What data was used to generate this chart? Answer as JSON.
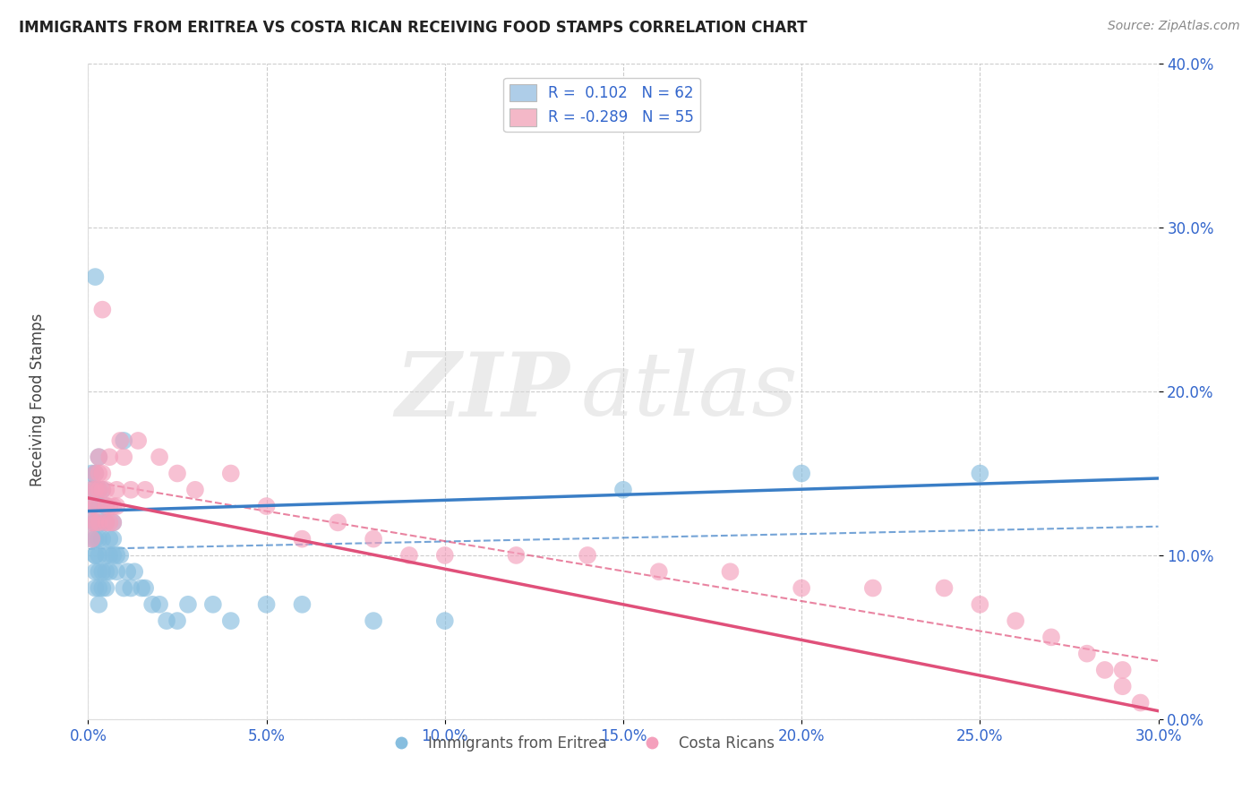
{
  "title": "IMMIGRANTS FROM ERITREA VS COSTA RICAN RECEIVING FOOD STAMPS CORRELATION CHART",
  "source": "Source: ZipAtlas.com",
  "ylabel": "Receiving Food Stamps",
  "xlim": [
    0.0,
    0.3
  ],
  "ylim": [
    0.0,
    0.4
  ],
  "xticks": [
    0.0,
    0.05,
    0.1,
    0.15,
    0.2,
    0.25,
    0.3
  ],
  "yticks": [
    0.0,
    0.1,
    0.2,
    0.3,
    0.4
  ],
  "xtick_labels": [
    "0.0%",
    "5.0%",
    "10.0%",
    "15.0%",
    "20.0%",
    "25.0%",
    "30.0%"
  ],
  "ytick_labels": [
    "0.0%",
    "10.0%",
    "20.0%",
    "30.0%",
    "40.0%"
  ],
  "watermark_zip": "ZIP",
  "watermark_atlas": "atlas",
  "blue_scatter_color": "#87bedf",
  "pink_scatter_color": "#f4a0bc",
  "blue_line_color": "#3a7ec6",
  "pink_line_color": "#e0507a",
  "legend_text_color": "#3366cc",
  "legend_patch_blue": "#aecde8",
  "legend_patch_pink": "#f4b8c8",
  "blue_r": 0.102,
  "blue_n": 62,
  "pink_r": -0.289,
  "pink_n": 55,
  "blue_scatter_x": [
    0.001,
    0.001,
    0.001,
    0.001,
    0.001,
    0.002,
    0.002,
    0.002,
    0.002,
    0.002,
    0.002,
    0.002,
    0.002,
    0.002,
    0.003,
    0.003,
    0.003,
    0.003,
    0.003,
    0.003,
    0.003,
    0.003,
    0.004,
    0.004,
    0.004,
    0.004,
    0.004,
    0.005,
    0.005,
    0.005,
    0.005,
    0.005,
    0.006,
    0.006,
    0.006,
    0.007,
    0.007,
    0.007,
    0.008,
    0.008,
    0.009,
    0.01,
    0.01,
    0.011,
    0.012,
    0.013,
    0.015,
    0.016,
    0.018,
    0.02,
    0.022,
    0.025,
    0.028,
    0.035,
    0.04,
    0.05,
    0.06,
    0.08,
    0.1,
    0.15,
    0.2,
    0.25
  ],
  "blue_scatter_y": [
    0.14,
    0.15,
    0.11,
    0.12,
    0.13,
    0.27,
    0.1,
    0.12,
    0.14,
    0.15,
    0.11,
    0.09,
    0.08,
    0.1,
    0.13,
    0.14,
    0.16,
    0.1,
    0.11,
    0.09,
    0.08,
    0.07,
    0.12,
    0.14,
    0.11,
    0.09,
    0.08,
    0.13,
    0.12,
    0.1,
    0.09,
    0.08,
    0.11,
    0.1,
    0.09,
    0.12,
    0.11,
    0.1,
    0.1,
    0.09,
    0.1,
    0.17,
    0.08,
    0.09,
    0.08,
    0.09,
    0.08,
    0.08,
    0.07,
    0.07,
    0.06,
    0.06,
    0.07,
    0.07,
    0.06,
    0.07,
    0.07,
    0.06,
    0.06,
    0.14,
    0.15,
    0.15
  ],
  "pink_scatter_x": [
    0.001,
    0.001,
    0.001,
    0.001,
    0.002,
    0.002,
    0.002,
    0.002,
    0.003,
    0.003,
    0.003,
    0.003,
    0.004,
    0.004,
    0.004,
    0.005,
    0.005,
    0.005,
    0.006,
    0.006,
    0.006,
    0.007,
    0.007,
    0.008,
    0.008,
    0.009,
    0.01,
    0.012,
    0.014,
    0.016,
    0.02,
    0.025,
    0.03,
    0.04,
    0.05,
    0.06,
    0.07,
    0.08,
    0.09,
    0.1,
    0.12,
    0.14,
    0.16,
    0.18,
    0.2,
    0.22,
    0.24,
    0.25,
    0.26,
    0.27,
    0.28,
    0.285,
    0.29,
    0.29,
    0.295
  ],
  "pink_scatter_y": [
    0.13,
    0.14,
    0.12,
    0.11,
    0.15,
    0.14,
    0.13,
    0.12,
    0.16,
    0.15,
    0.14,
    0.12,
    0.25,
    0.15,
    0.14,
    0.14,
    0.13,
    0.12,
    0.16,
    0.13,
    0.12,
    0.13,
    0.12,
    0.14,
    0.13,
    0.17,
    0.16,
    0.14,
    0.17,
    0.14,
    0.16,
    0.15,
    0.14,
    0.15,
    0.13,
    0.11,
    0.12,
    0.11,
    0.1,
    0.1,
    0.1,
    0.1,
    0.09,
    0.09,
    0.08,
    0.08,
    0.08,
    0.07,
    0.06,
    0.05,
    0.04,
    0.03,
    0.02,
    0.03,
    0.01
  ]
}
